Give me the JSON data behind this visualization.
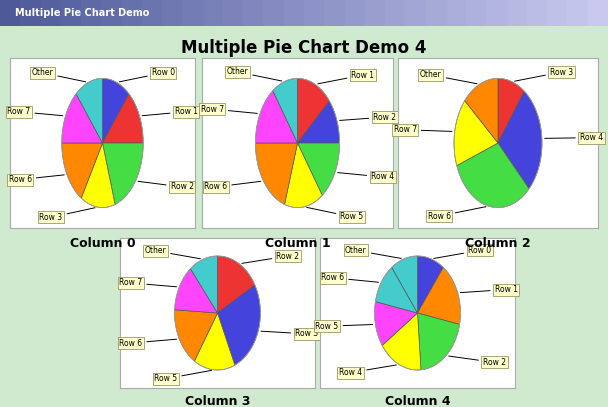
{
  "title": "Multiple Pie Chart Demo 4",
  "bg_color": "#d0ead0",
  "panel_bg": "#ffffff",
  "label_bg": "#ffffcc",
  "label_border": "#aaaaaa",
  "titlebar_color": "#6688cc",
  "charts": [
    {
      "col": "Column 0",
      "labels": [
        "Row 0",
        "Row 1",
        "Row 2",
        "Row 3",
        "Row 6",
        "Row 7",
        "Other"
      ],
      "sizes": [
        9,
        11,
        16,
        11,
        13,
        11,
        9
      ],
      "colors": [
        "#4444dd",
        "#ee3333",
        "#44dd44",
        "#ffff00",
        "#ff8800",
        "#ff44ff",
        "#44cccc"
      ]
    },
    {
      "col": "Column 1",
      "labels": [
        "Row 1",
        "Row 2",
        "Row 4",
        "Row 5",
        "Row 6",
        "Row 7",
        "Other"
      ],
      "sizes": [
        11,
        9,
        12,
        12,
        16,
        12,
        8
      ],
      "colors": [
        "#ee3333",
        "#4444dd",
        "#44dd44",
        "#ffff00",
        "#ff8800",
        "#ff44ff",
        "#44cccc"
      ]
    },
    {
      "col": "Column 2",
      "labels": [
        "Row 3",
        "Row 4",
        "Row 6",
        "Row 7",
        "Other"
      ],
      "sizes": [
        9,
        24,
        28,
        15,
        12
      ],
      "colors": [
        "#ee3333",
        "#4444dd",
        "#44dd44",
        "#ffff00",
        "#ff8800"
      ]
    },
    {
      "col": "Column 3",
      "labels": [
        "Row 2",
        "Row 3",
        "Row 5",
        "Row 6",
        "Row 7",
        "Other"
      ],
      "sizes": [
        14,
        22,
        13,
        14,
        11,
        9
      ],
      "colors": [
        "#ee3333",
        "#4444dd",
        "#ffff00",
        "#ff8800",
        "#ff44ff",
        "#44cccc"
      ]
    },
    {
      "col": "Column 4",
      "labels": [
        "Row 0",
        "Row 1",
        "Row 2",
        "Row 4",
        "Row 5",
        "Row 6",
        "Other"
      ],
      "sizes": [
        8,
        14,
        16,
        13,
        10,
        9,
        8
      ],
      "colors": [
        "#4444dd",
        "#ff8800",
        "#44dd44",
        "#ffff00",
        "#ff44ff",
        "#44cccc",
        "#44cccc"
      ]
    }
  ]
}
